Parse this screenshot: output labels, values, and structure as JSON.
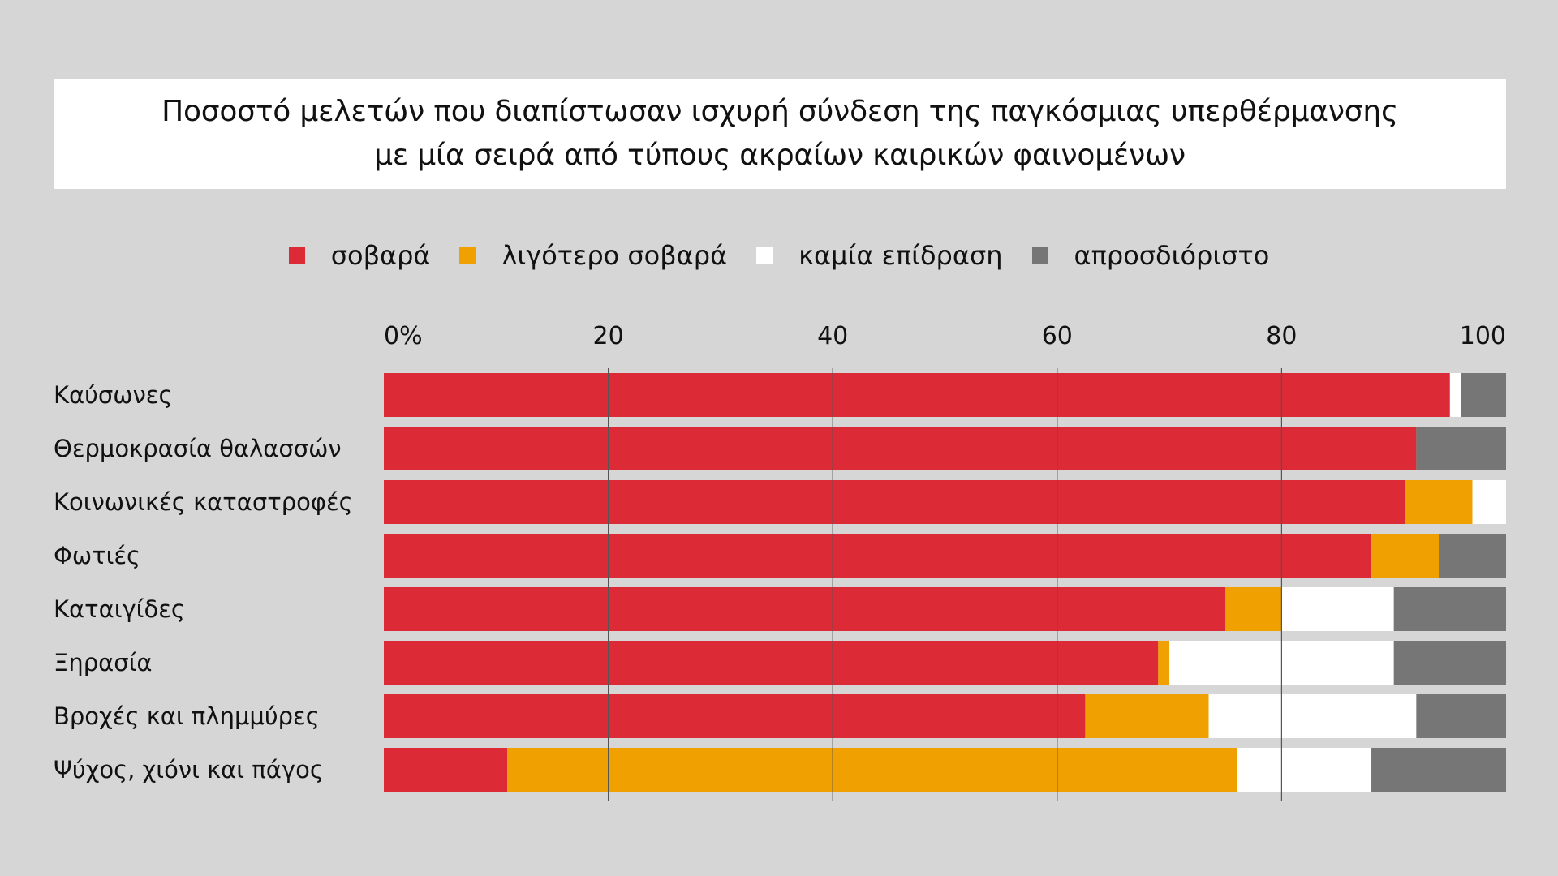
{
  "title": {
    "line1": "Ποσοστό μελετών που διαπίστωσαν ισχυρή σύνδεση της παγκόσμιας υπερθέρμανσης",
    "line2": "με μία σειρά από τύπους ακραίων καιρικών φαινομένων"
  },
  "colors": {
    "background": "#d6d6d6",
    "grid": "#555555"
  },
  "chart_data": {
    "type": "bar",
    "orientation": "horizontal",
    "stacked": true,
    "xlim": [
      0,
      100
    ],
    "ticks": [
      {
        "value": 0,
        "label": "0%"
      },
      {
        "value": 20,
        "label": "20"
      },
      {
        "value": 40,
        "label": "40"
      },
      {
        "value": 60,
        "label": "60"
      },
      {
        "value": 80,
        "label": "80"
      },
      {
        "value": 100,
        "label": "100"
      }
    ],
    "grid": true,
    "legend_position": "top",
    "categories": [
      "Καύσωνες",
      "Θερμοκρασία θαλασσών",
      "Κοινωνικές καταστροφές",
      "Φωτιές",
      "Καταιγίδες",
      "Ξηρασία",
      "Βροχές και πλημμύρες",
      "Ψύχος, χιόνι και πάγος"
    ],
    "series": [
      {
        "name": "σοβαρά",
        "color": "#dc2a37",
        "values": [
          95,
          92,
          91,
          88,
          75,
          69,
          62.5,
          11
        ]
      },
      {
        "name": "λιγότερο σοβαρά",
        "color": "#f0a000",
        "values": [
          0,
          0,
          6,
          6,
          5,
          1,
          11,
          65
        ]
      },
      {
        "name": "καμία επίδραση",
        "color": "#ffffff",
        "values": [
          1,
          0,
          3,
          0,
          10,
          20,
          18.5,
          12
        ]
      },
      {
        "name": "απροσδιόριστο",
        "color": "#767676",
        "values": [
          4,
          8,
          0,
          6,
          10,
          10,
          8,
          12
        ]
      }
    ]
  }
}
